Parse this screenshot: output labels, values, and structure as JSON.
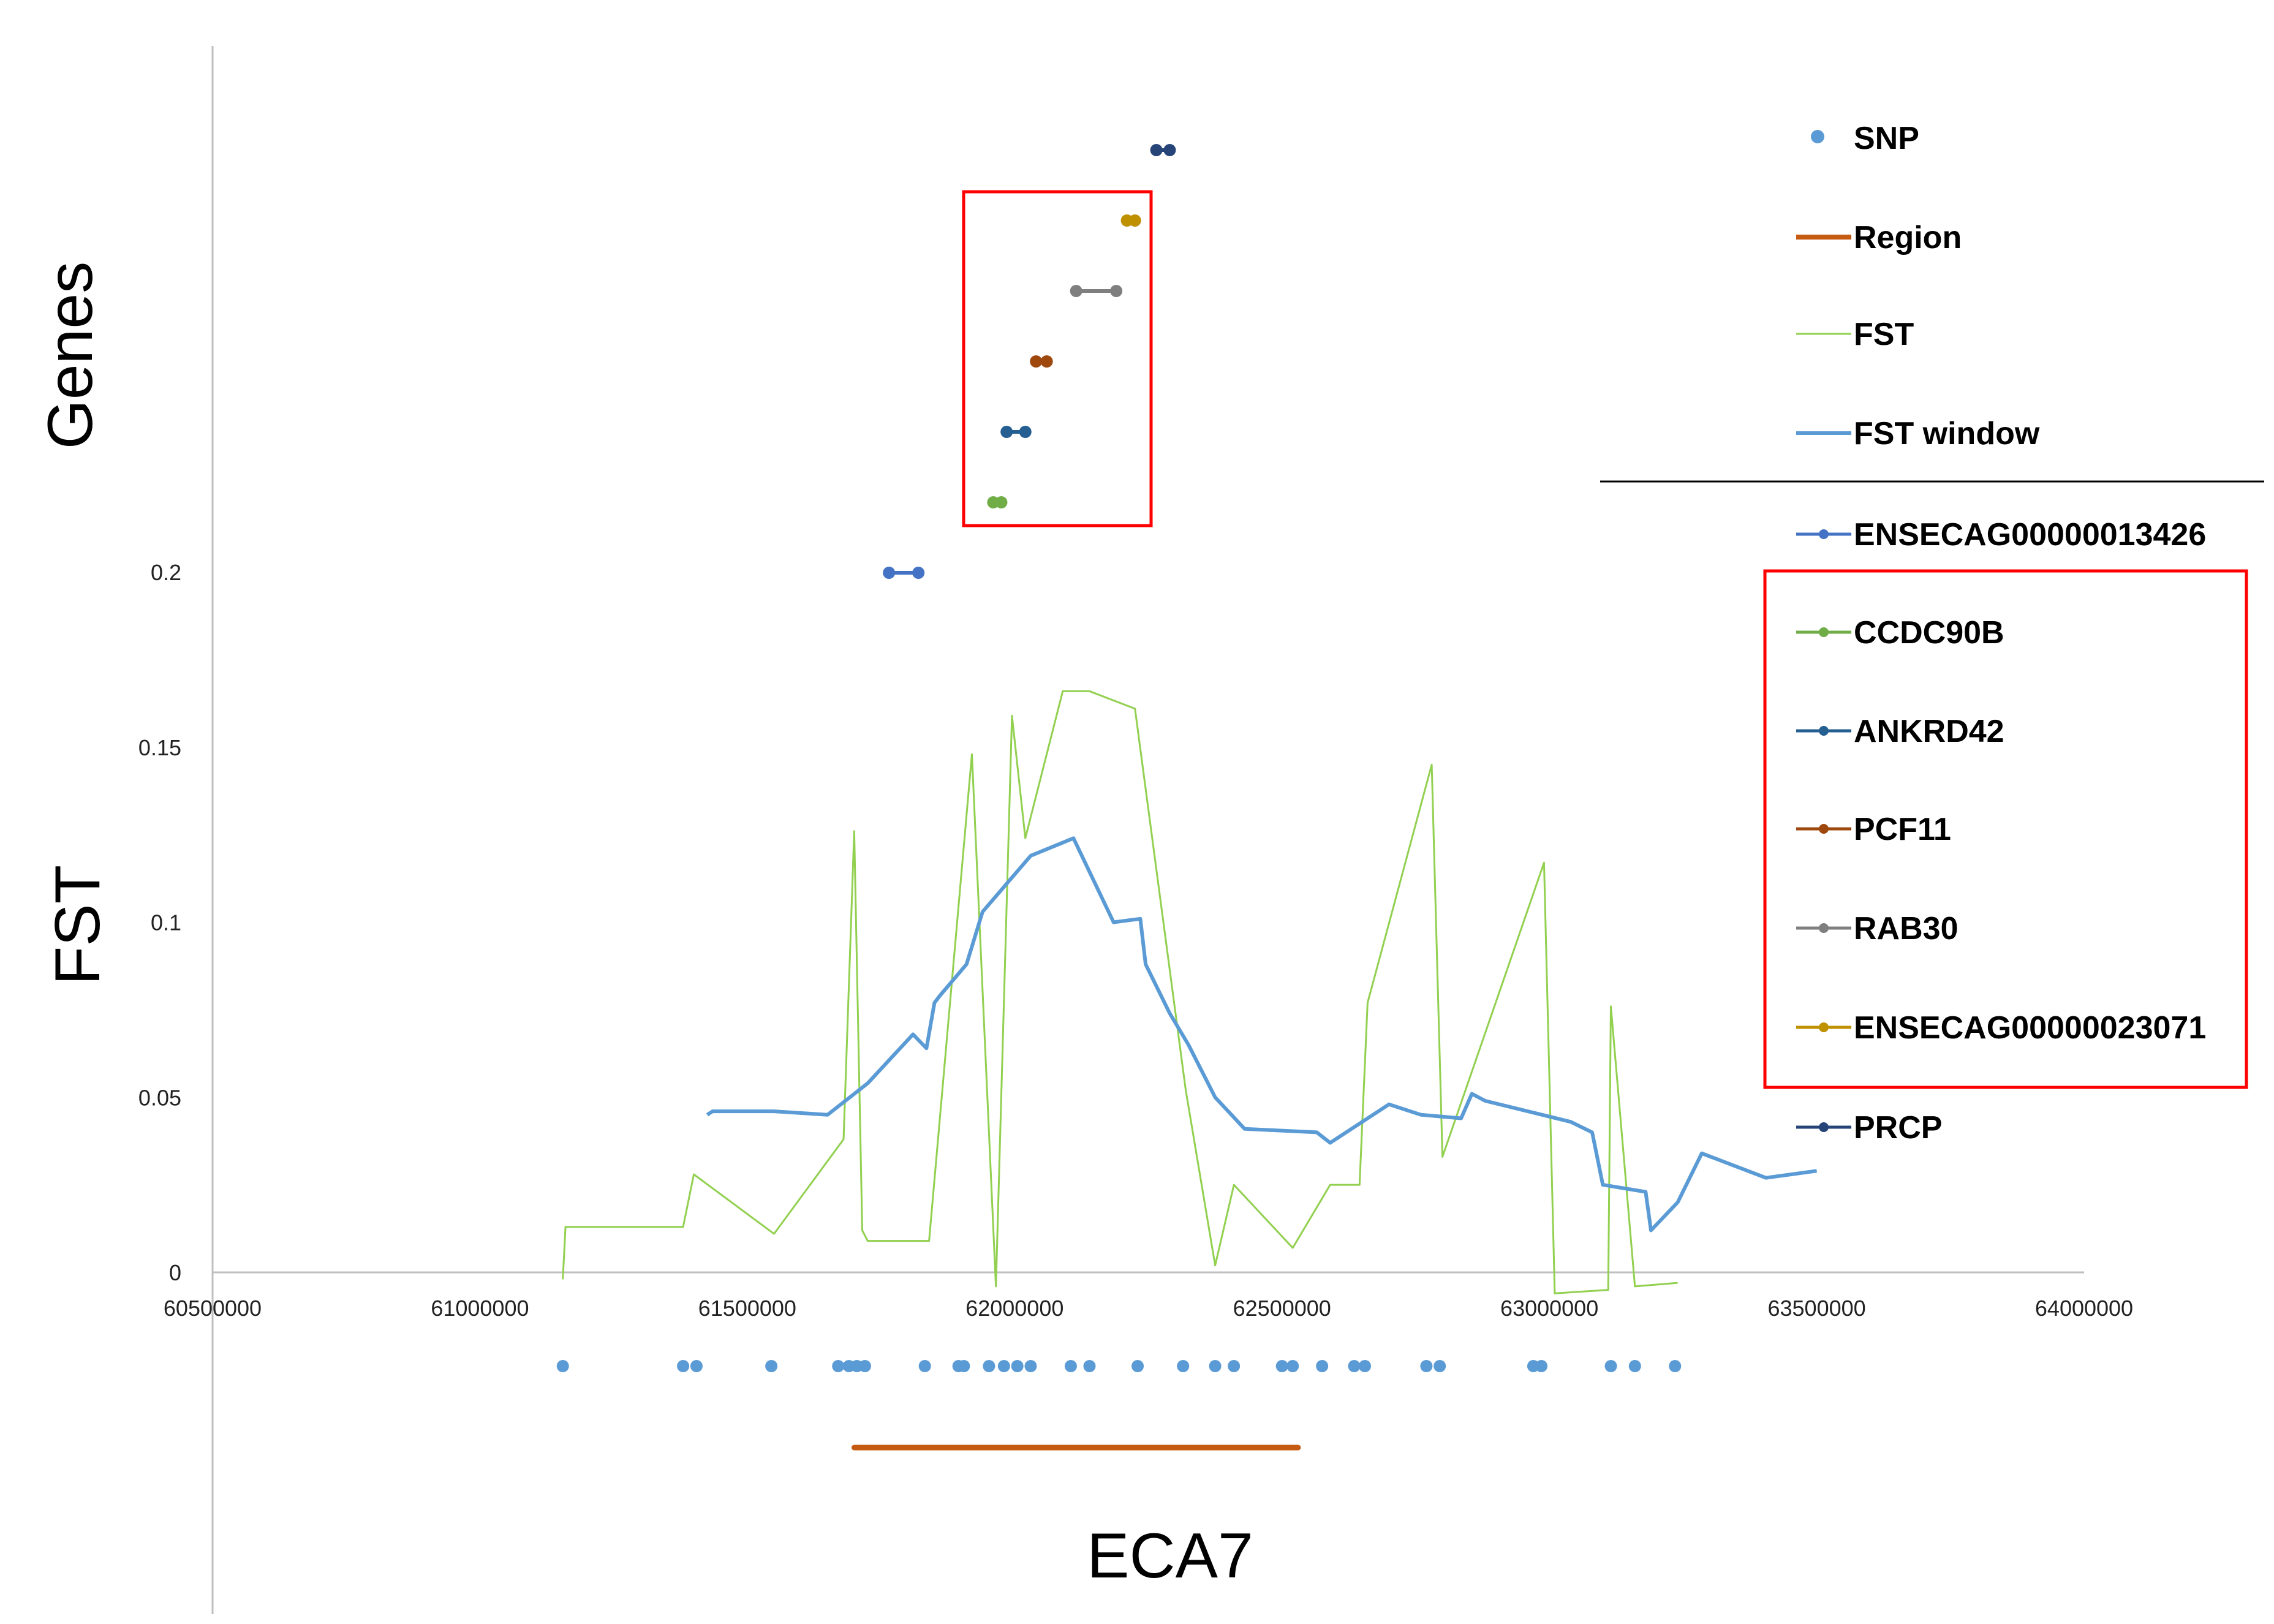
{
  "chart_data": {
    "type": "line",
    "xlabel": "ECA7",
    "ylabel": "FST",
    "ylabel_upper": "Genes",
    "xlim": [
      60500000,
      64000000
    ],
    "ylim": [
      0,
      0.2
    ],
    "x_ticks": [
      "60500000",
      "61000000",
      "61500000",
      "62000000",
      "62500000",
      "63000000",
      "63500000",
      "64000000"
    ],
    "y_ticks": [
      "0",
      "0.05",
      "0.1",
      "0.15",
      "0.2"
    ],
    "legend_position": "right",
    "series": [
      {
        "name": "SNP",
        "kind": "markers",
        "color": "#5b9bd5",
        "x": [
          61155000,
          61380000,
          61405000,
          61545000,
          61670000,
          61690000,
          61705000,
          61720000,
          61832000,
          61895000,
          61905000,
          61952000,
          61980000,
          62005000,
          62030000,
          62105000,
          62140000,
          62230000,
          62315000,
          62375000,
          62410000,
          62500000,
          62520000,
          62575000,
          62635000,
          62655000,
          62770000,
          62795000,
          62970000,
          62985000,
          63115000,
          63160000,
          63235000
        ]
      },
      {
        "name": "Region",
        "kind": "range",
        "color": "#c55a11",
        "x": [
          61700000,
          62530000
        ]
      },
      {
        "name": "FST",
        "kind": "line",
        "color": "#92d050",
        "x": [
          61155000,
          61160000,
          61380000,
          61400000,
          61550000,
          61680000,
          61700000,
          61715000,
          61725000,
          61840000,
          61920000,
          61965000,
          61995000,
          62020000,
          62090000,
          62140000,
          62225000,
          62320000,
          62375000,
          62410000,
          62520000,
          62590000,
          62645000,
          62660000,
          62780000,
          62800000,
          62990000,
          63010000,
          63110000,
          63115000,
          63160000,
          63240000
        ],
        "values": [
          -0.002,
          0.013,
          0.013,
          0.028,
          0.011,
          0.038,
          0.126,
          0.012,
          0.009,
          0.009,
          0.148,
          -0.004,
          0.159,
          0.124,
          0.166,
          0.166,
          0.161,
          0.052,
          0.002,
          0.025,
          0.007,
          0.025,
          0.025,
          0.077,
          0.145,
          0.033,
          0.117,
          -0.006,
          -0.005,
          0.076,
          -0.004,
          -0.003
        ]
      },
      {
        "name": "FST window",
        "kind": "line",
        "color": "#5b9bd5",
        "x": [
          61425000,
          61435000,
          61550000,
          61650000,
          61725000,
          61810000,
          61835000,
          61850000,
          61860000,
          61910000,
          61940000,
          62030000,
          62110000,
          62185000,
          62235000,
          62245000,
          62290000,
          62325000,
          62375000,
          62430000,
          62565000,
          62590000,
          62700000,
          62760000,
          62835000,
          62855000,
          62880000,
          63040000,
          63080000,
          63100000,
          63180000,
          63190000,
          63240000,
          63285000,
          63405000,
          63500000
        ],
        "values": [
          0.045,
          0.046,
          0.046,
          0.045,
          0.054,
          0.068,
          0.064,
          0.077,
          0.079,
          0.088,
          0.103,
          0.119,
          0.124,
          0.1,
          0.101,
          0.088,
          0.074,
          0.065,
          0.05,
          0.041,
          0.04,
          0.037,
          0.048,
          0.045,
          0.044,
          0.051,
          0.049,
          0.043,
          0.04,
          0.025,
          0.023,
          0.012,
          0.02,
          0.034,
          0.027,
          0.029
        ]
      },
      {
        "name": "ENSECAG00000013426",
        "kind": "gene",
        "color": "#4472c4",
        "x": [
          61765000,
          61820000
        ],
        "row": 1
      },
      {
        "name": "CCDC90B",
        "kind": "gene",
        "color": "#70ad47",
        "x": [
          61960000,
          61975000
        ],
        "row": 2
      },
      {
        "name": "ANKRD42",
        "kind": "gene",
        "color": "#255e91",
        "x": [
          61985000,
          62020000
        ],
        "row": 3
      },
      {
        "name": "PCF11",
        "kind": "gene",
        "color": "#9e480e",
        "x": [
          62040000,
          62060000
        ],
        "row": 4
      },
      {
        "name": "RAB30",
        "kind": "gene",
        "color": "#7f7f7f",
        "x": [
          62115000,
          62190000
        ],
        "row": 5
      },
      {
        "name": "ENSECAG00000023071",
        "kind": "gene",
        "color": "#bf9000",
        "x": [
          62210000,
          62225000
        ],
        "row": 6
      },
      {
        "name": "PRCP",
        "kind": "gene",
        "color": "#264478",
        "x": [
          62265000,
          62290000
        ],
        "row": 7
      }
    ],
    "highlight_color": "#ff0000",
    "axis_color": "#bfbfbf"
  }
}
